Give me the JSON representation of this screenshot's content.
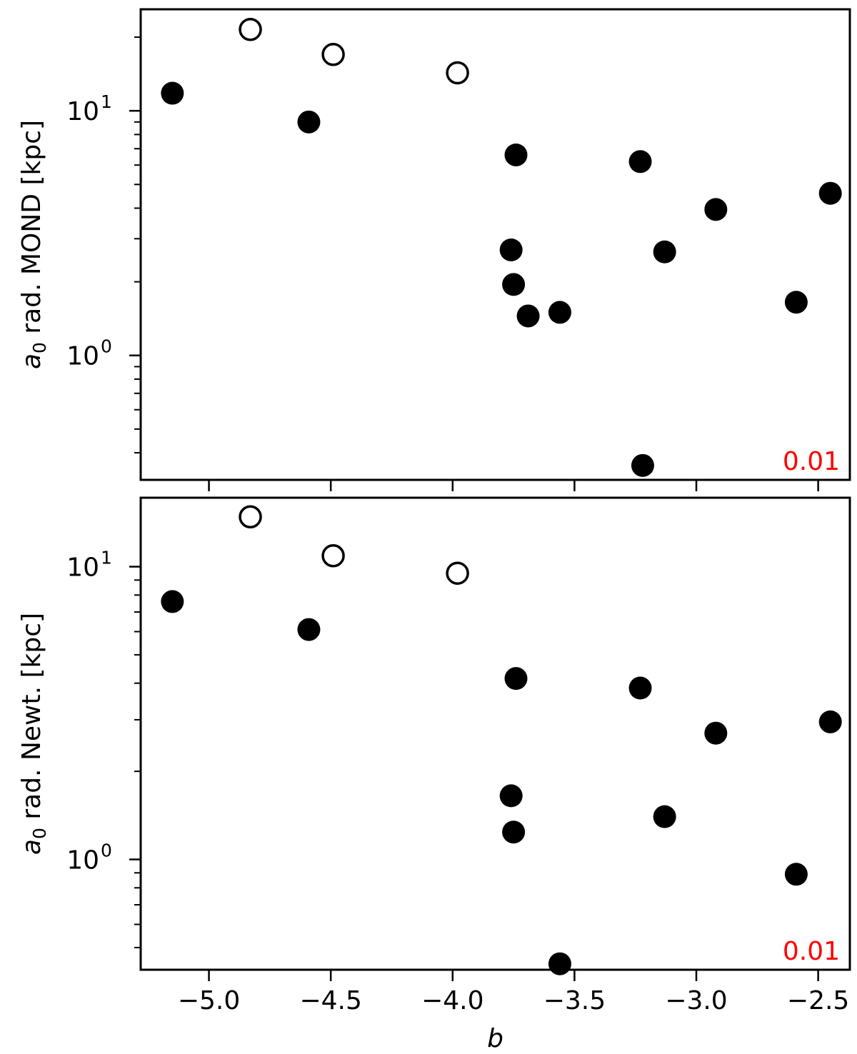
{
  "colors": {
    "marker": "#000000",
    "annotation": "#ff0000",
    "frame": "#000000",
    "background": "#ffffff"
  },
  "chart_data": [
    {
      "type": "scatter",
      "ylabel_sym": "a",
      "ylabel_sub": "0",
      "ylabel_rest": " rad. MOND [kpc]",
      "xlabel": "",
      "annotation": "0.01",
      "yscale": "log",
      "xlim": [
        -5.28,
        -2.37
      ],
      "ylim": [
        0.31,
        26.0
      ],
      "xticks": [
        -5.0,
        -4.5,
        -4.0,
        -3.5,
        -3.0,
        -2.5
      ],
      "show_xticklabels": false,
      "ytick_labels": [
        {
          "base": "10",
          "exp": "1",
          "value": 10
        },
        {
          "base": "10",
          "exp": "0",
          "value": 1
        }
      ],
      "grid": false,
      "series": [
        {
          "marker": "filled",
          "points": [
            {
              "x": -5.15,
              "y": 11.8
            },
            {
              "x": -4.59,
              "y": 9.0
            },
            {
              "x": -3.74,
              "y": 6.6
            },
            {
              "x": -3.76,
              "y": 2.7
            },
            {
              "x": -3.75,
              "y": 1.95
            },
            {
              "x": -3.69,
              "y": 1.45
            },
            {
              "x": -3.56,
              "y": 1.5
            },
            {
              "x": -3.23,
              "y": 6.2
            },
            {
              "x": -3.13,
              "y": 2.65
            },
            {
              "x": -2.92,
              "y": 3.95
            },
            {
              "x": -2.59,
              "y": 1.65
            },
            {
              "x": -2.45,
              "y": 4.6
            },
            {
              "x": -3.22,
              "y": 0.355
            }
          ]
        },
        {
          "marker": "open",
          "points": [
            {
              "x": -4.83,
              "y": 21.5
            },
            {
              "x": -4.49,
              "y": 17.0
            },
            {
              "x": -3.98,
              "y": 14.3
            }
          ]
        }
      ]
    },
    {
      "type": "scatter",
      "ylabel_sym": "a",
      "ylabel_sub": "0",
      "ylabel_rest": " rad. Newt. [kpc]",
      "xlabel": "b",
      "annotation": "0.01",
      "yscale": "log",
      "xlim": [
        -5.28,
        -2.37
      ],
      "ylim": [
        0.42,
        17.2
      ],
      "xticks": [
        -5.0,
        -4.5,
        -4.0,
        -3.5,
        -3.0,
        -2.5
      ],
      "xtick_labels": [
        "−5.0",
        "−4.5",
        "−4.0",
        "−3.5",
        "−3.0",
        "−2.5"
      ],
      "show_xticklabels": true,
      "ytick_labels": [
        {
          "base": "10",
          "exp": "1",
          "value": 10
        },
        {
          "base": "10",
          "exp": "0",
          "value": 1
        }
      ],
      "grid": false,
      "series": [
        {
          "marker": "filled",
          "points": [
            {
              "x": -5.15,
              "y": 7.6
            },
            {
              "x": -4.59,
              "y": 6.1
            },
            {
              "x": -3.74,
              "y": 4.15
            },
            {
              "x": -3.76,
              "y": 1.65
            },
            {
              "x": -3.75,
              "y": 1.24
            },
            {
              "x": -3.23,
              "y": 3.85
            },
            {
              "x": -3.13,
              "y": 1.4
            },
            {
              "x": -2.92,
              "y": 2.7
            },
            {
              "x": -2.59,
              "y": 0.89
            },
            {
              "x": -2.45,
              "y": 2.95
            },
            {
              "x": -3.56,
              "y": 0.44
            }
          ]
        },
        {
          "marker": "open",
          "points": [
            {
              "x": -4.83,
              "y": 14.8
            },
            {
              "x": -4.49,
              "y": 10.9
            },
            {
              "x": -3.98,
              "y": 9.5
            }
          ]
        }
      ]
    }
  ]
}
